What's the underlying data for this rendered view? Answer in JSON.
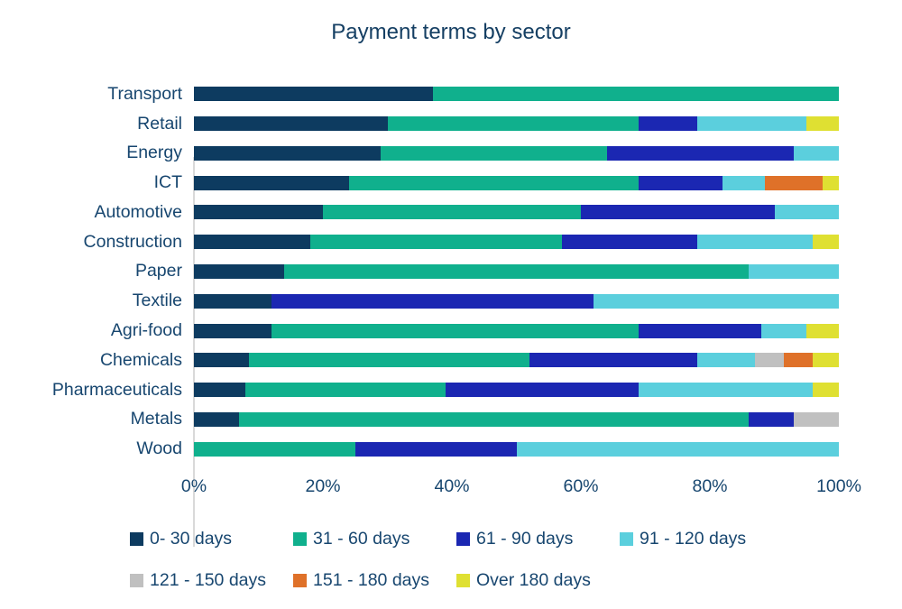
{
  "chart_data": {
    "type": "bar",
    "orientation": "horizontal",
    "stacked": true,
    "stack_total": 100,
    "title": "Payment terms by sector",
    "categories": [
      "Transport",
      "Retail",
      "Energy",
      "ICT",
      "Automotive",
      "Construction",
      "Paper",
      "Textile",
      "Agri-food",
      "Chemicals",
      "Pharmaceuticals",
      "Metals",
      "Wood"
    ],
    "series": [
      {
        "name": "0- 30 days",
        "color": "#0d3b60",
        "values": [
          37,
          30,
          29,
          24,
          20,
          18,
          14,
          12,
          12,
          8.5,
          8,
          7,
          0
        ]
      },
      {
        "name": "31 - 60 days",
        "color": "#10b08d",
        "values": [
          63,
          39,
          35,
          45,
          40,
          39,
          72,
          0,
          57,
          43.5,
          31,
          79,
          25
        ]
      },
      {
        "name": "61 - 90 days",
        "color": "#1b27b2",
        "values": [
          0,
          9,
          29,
          13,
          30,
          21,
          0,
          50,
          19,
          26,
          30,
          7,
          25
        ]
      },
      {
        "name": "91 - 120 days",
        "color": "#5bcfdd",
        "values": [
          0,
          17,
          7,
          6.5,
          10,
          18,
          14,
          38,
          7,
          9,
          27,
          0,
          50
        ]
      },
      {
        "name": "121 - 150 days",
        "color": "#c0c0c0",
        "values": [
          0,
          0,
          0,
          0,
          0,
          0,
          0,
          0,
          0,
          4.5,
          0,
          7,
          0
        ]
      },
      {
        "name": "151 - 180 days",
        "color": "#df7129",
        "values": [
          0,
          0,
          0,
          9,
          0,
          0,
          0,
          0,
          0,
          4.5,
          0,
          0,
          0
        ]
      },
      {
        "name": "Over 180 days",
        "color": "#dfe032",
        "values": [
          0,
          5,
          0,
          2.5,
          0,
          4,
          0,
          0,
          5,
          4,
          4,
          0,
          0
        ]
      }
    ],
    "x_axis": {
      "min": 0,
      "max": 100,
      "tick_labels": [
        "0%",
        "20%",
        "40%",
        "60%",
        "80%",
        "100%"
      ]
    },
    "legend": {
      "position": "bottom-left",
      "rows": [
        4,
        3
      ]
    },
    "grid": "off",
    "axis_line_color": "#d9d9d9",
    "text_color": "#17466f"
  }
}
